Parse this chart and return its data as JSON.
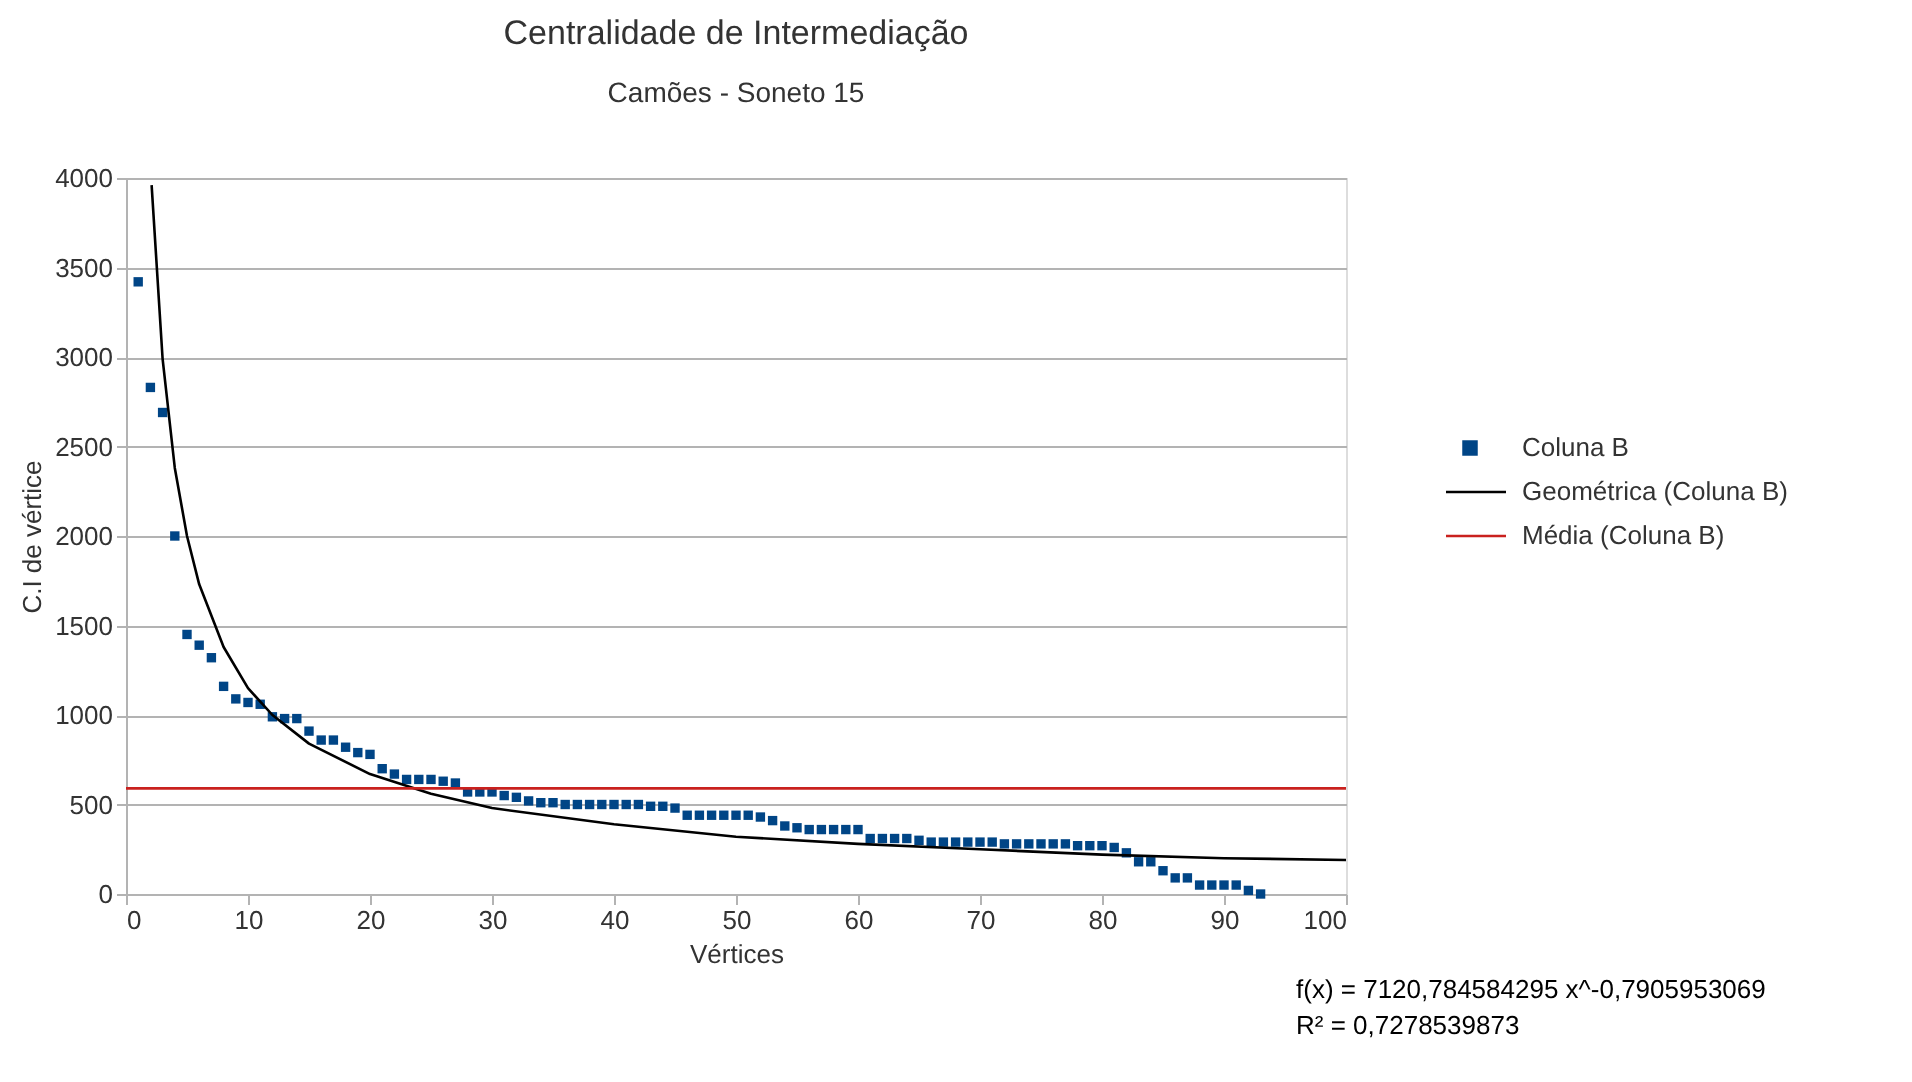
{
  "chart_data": {
    "type": "scatter",
    "title": "Centralidade de Intermediação",
    "subtitle": "Camões - Soneto 15",
    "xlabel": "Vértices",
    "ylabel": "C.I de vértice",
    "xlim": [
      0,
      100
    ],
    "xticks": [
      0,
      10,
      20,
      30,
      40,
      50,
      60,
      70,
      80,
      90,
      100
    ],
    "ylim": [
      0,
      4000
    ],
    "yticks": [
      0,
      500,
      1000,
      1500,
      2000,
      2500,
      3000,
      3500,
      4000
    ],
    "grid": "y",
    "legend": "right",
    "series": [
      {
        "name": "Coluna B",
        "color": "#004586",
        "marker": "square",
        "x": [
          1,
          2,
          3,
          4,
          5,
          6,
          7,
          8,
          9,
          10,
          11,
          12,
          13,
          14,
          15,
          16,
          17,
          18,
          19,
          20,
          21,
          22,
          23,
          24,
          25,
          26,
          27,
          28,
          29,
          30,
          31,
          32,
          33,
          34,
          35,
          36,
          37,
          38,
          39,
          40,
          41,
          42,
          43,
          44,
          45,
          46,
          47,
          48,
          49,
          50,
          51,
          52,
          53,
          54,
          55,
          56,
          57,
          58,
          59,
          60,
          61,
          62,
          63,
          64,
          65,
          66,
          67,
          68,
          69,
          70,
          71,
          72,
          73,
          74,
          75,
          76,
          77,
          78,
          79,
          80,
          81,
          82,
          83,
          84,
          85,
          86,
          87,
          88,
          89,
          90,
          91,
          92,
          93
        ],
        "values": [
          3420,
          2830,
          2690,
          2000,
          1450,
          1390,
          1320,
          1160,
          1090,
          1070,
          1060,
          990,
          980,
          980,
          910,
          860,
          860,
          820,
          790,
          780,
          700,
          670,
          640,
          640,
          640,
          630,
          620,
          570,
          570,
          570,
          550,
          540,
          520,
          510,
          510,
          500,
          500,
          500,
          500,
          500,
          500,
          500,
          490,
          490,
          480,
          440,
          440,
          440,
          440,
          440,
          440,
          430,
          410,
          380,
          370,
          360,
          360,
          360,
          360,
          360,
          310,
          310,
          310,
          310,
          300,
          290,
          290,
          290,
          290,
          290,
          290,
          280,
          280,
          280,
          280,
          280,
          280,
          270,
          270,
          270,
          260,
          230,
          180,
          180,
          130,
          90,
          90,
          50,
          50,
          50,
          50,
          20,
          0
        ]
      },
      {
        "name": "Geométrica (Coluna B)",
        "color": "#000000",
        "type": "line",
        "line_style": "solid",
        "x": [
          2.1,
          3,
          4,
          5,
          6,
          8,
          10,
          12,
          15,
          20,
          25,
          30,
          40,
          50,
          60,
          70,
          80,
          90,
          100
        ],
        "values": [
          3960,
          2990,
          2380,
          2000,
          1730,
          1380,
          1150,
          1000,
          840,
          670,
          560,
          480,
          390,
          320,
          280,
          250,
          220,
          200,
          190
        ]
      },
      {
        "name": "Média (Coluna B)",
        "color": "#c9211e",
        "type": "line",
        "line_style": "solid",
        "x": [
          0,
          100
        ],
        "values": [
          590,
          590
        ]
      }
    ],
    "annotations": [
      "f(x) = 7120,784584295 x^-0,7905953069",
      "R² = 0,7278539873"
    ]
  }
}
